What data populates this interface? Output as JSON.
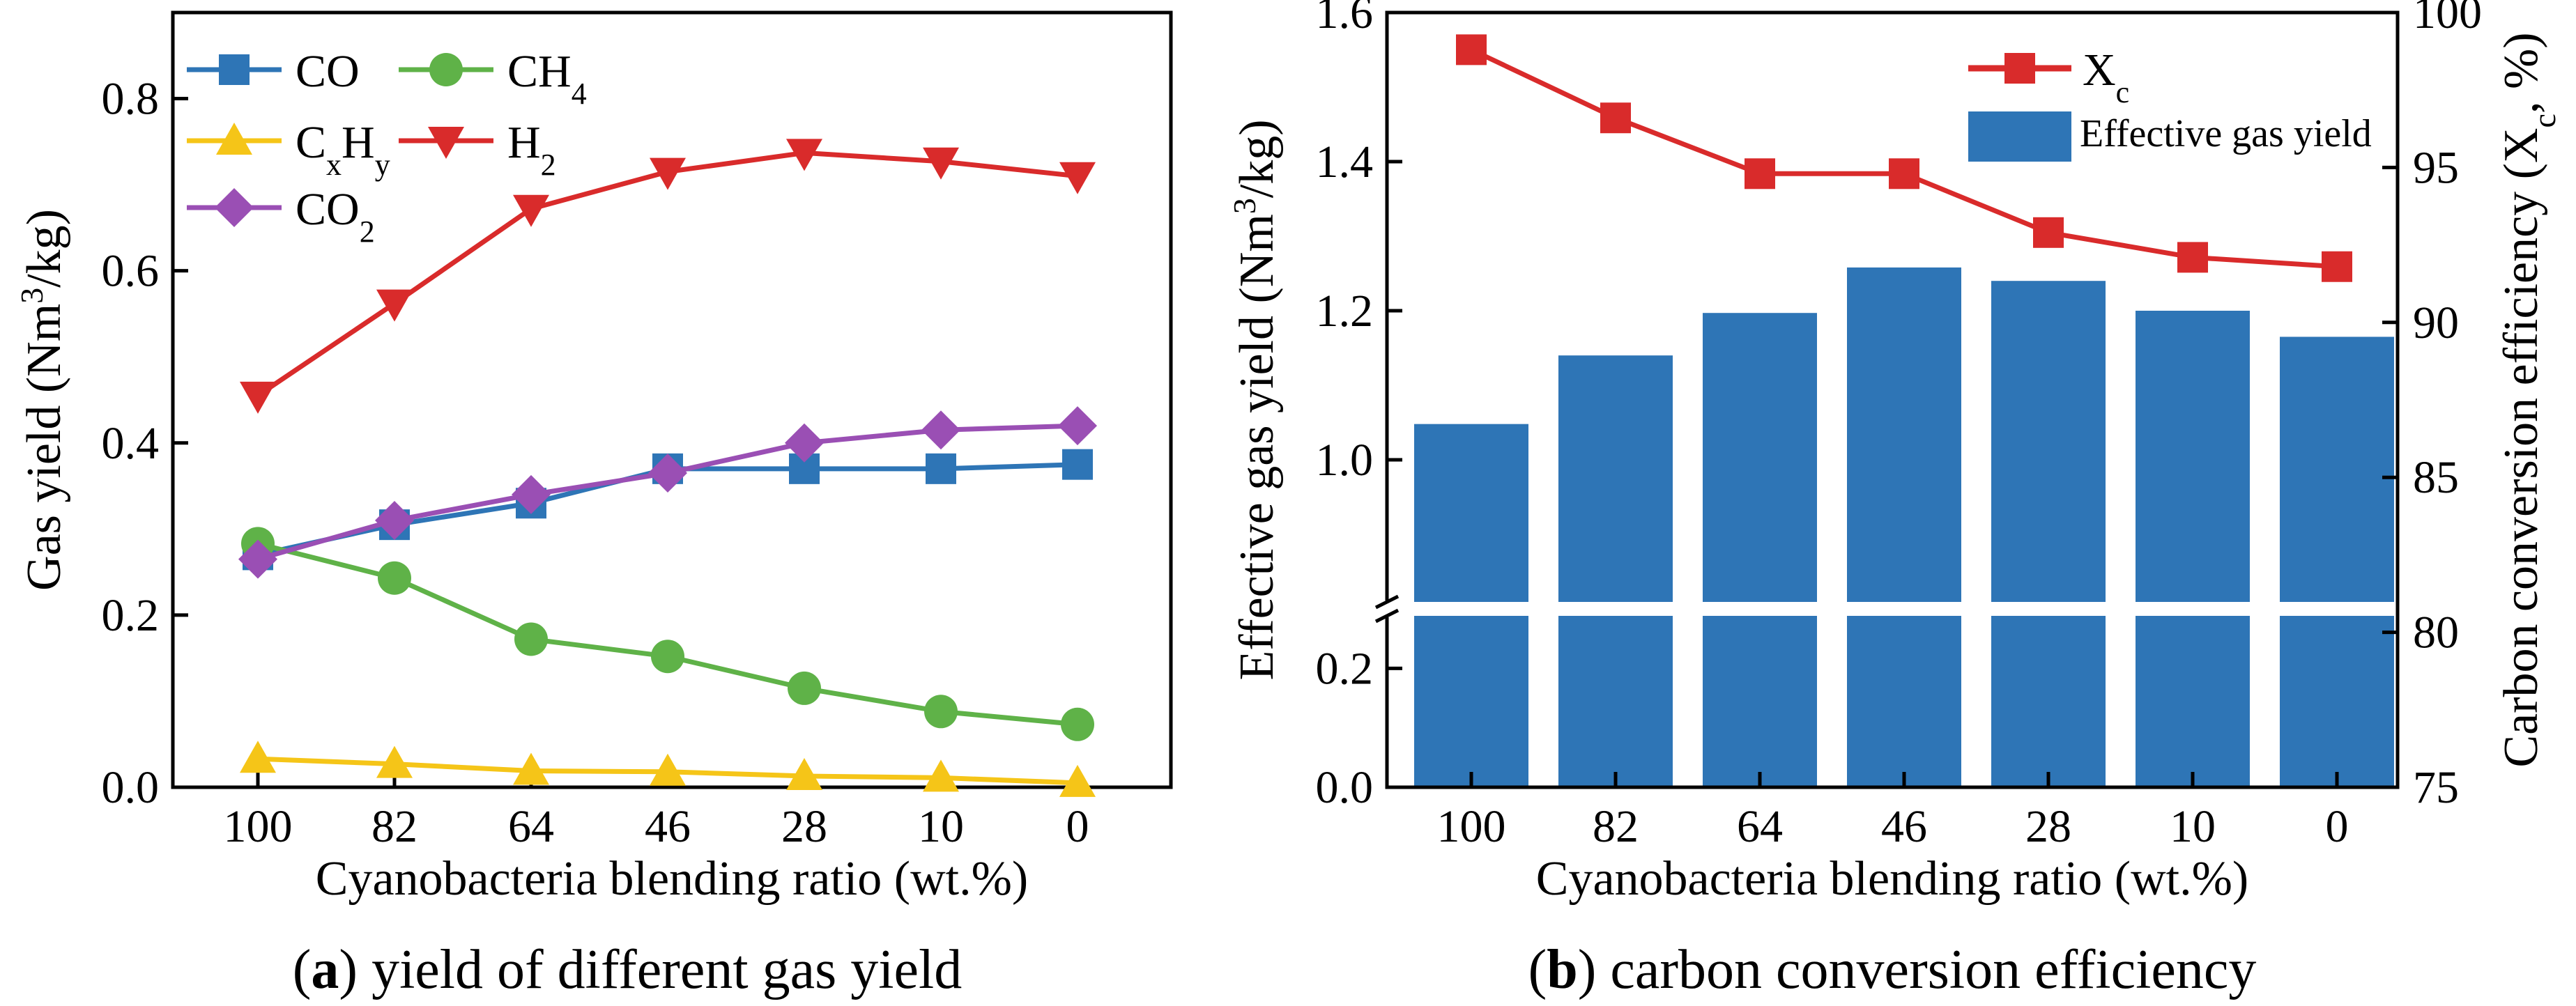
{
  "chart_data": [
    {
      "type": "line",
      "caption_bold": "a",
      "caption_text": ") yield of different gas yield",
      "xlabel": "Cyanobacteria blending ratio (wt.%)",
      "ylabel_pre": "Gas yield (Nm",
      "ylabel_sup": "3",
      "ylabel_post": "/kg)",
      "categories": [
        "100",
        "82",
        "64",
        "46",
        "28",
        "10",
        "0"
      ],
      "ylim": [
        0,
        0.9
      ],
      "yticks": [
        "0.0",
        "0.2",
        "0.4",
        "0.6",
        "0.8"
      ],
      "legend_position": "top-left",
      "series": [
        {
          "name": "CO",
          "label_main": "CO",
          "label_sub": "",
          "label_sub2": "",
          "color": "#2e75b6",
          "marker": "square",
          "values": [
            0.27,
            0.305,
            0.33,
            0.37,
            0.37,
            0.37,
            0.375
          ]
        },
        {
          "name": "CH4",
          "label_main": "CH",
          "label_sub": "4",
          "label_sub2": "",
          "color": "#5fb248",
          "marker": "circle",
          "values": [
            0.283,
            0.243,
            0.172,
            0.152,
            0.115,
            0.088,
            0.073
          ]
        },
        {
          "name": "CxHy",
          "label_main": "C",
          "label_sub": "x",
          "label_mid": "H",
          "label_sub2": "y",
          "color": "#f5c518",
          "marker": "triangle-up",
          "values": [
            0.033,
            0.027,
            0.019,
            0.018,
            0.013,
            0.011,
            0.005
          ]
        },
        {
          "name": "H2",
          "label_main": "H",
          "label_sub": "2",
          "label_sub2": "",
          "color": "#d92b2b",
          "marker": "triangle-down",
          "values": [
            0.455,
            0.562,
            0.672,
            0.715,
            0.737,
            0.727,
            0.71
          ]
        },
        {
          "name": "CO2",
          "label_main": "CO",
          "label_sub": "2",
          "label_sub2": "",
          "color": "#9a4fb4",
          "marker": "diamond",
          "values": [
            0.265,
            0.31,
            0.34,
            0.365,
            0.4,
            0.415,
            0.42
          ]
        }
      ]
    },
    {
      "type": "bar+line",
      "caption_bold": "b",
      "caption_text": ") carbon conversion efficiency",
      "xlabel": "Cyanobacteria blending ratio (wt.%)",
      "ylabel_pre": "Effective gas yield (Nm",
      "ylabel_sup": "3",
      "ylabel_post": "/kg)",
      "y2label_pre": "Carbon conversion efficiency (X",
      "y2label_sub": "c",
      "y2label_post": ", %)",
      "categories": [
        "100",
        "82",
        "64",
        "46",
        "28",
        "10",
        "0"
      ],
      "y_axis_break": {
        "lower": [
          0,
          0.3
        ],
        "upper": [
          0.8,
          1.6
        ]
      },
      "yticks": [
        "0.0",
        "0.2",
        "1.0",
        "1.2",
        "1.4",
        "1.6"
      ],
      "y2lim": [
        75,
        100
      ],
      "y2ticks": [
        "75",
        "80",
        "85",
        "90",
        "95",
        "100"
      ],
      "legend_position": "top-right",
      "bars": {
        "name": "Effective gas yield",
        "color": "#2e75b6",
        "values": [
          1.048,
          1.14,
          1.197,
          1.258,
          1.24,
          1.2,
          1.165
        ]
      },
      "line": {
        "name": "Xc",
        "label_main": "X",
        "label_sub": "c",
        "color": "#d92b2b",
        "marker": "square",
        "values": [
          98.8,
          96.6,
          94.8,
          94.8,
          92.9,
          92.1,
          91.8
        ]
      }
    }
  ]
}
